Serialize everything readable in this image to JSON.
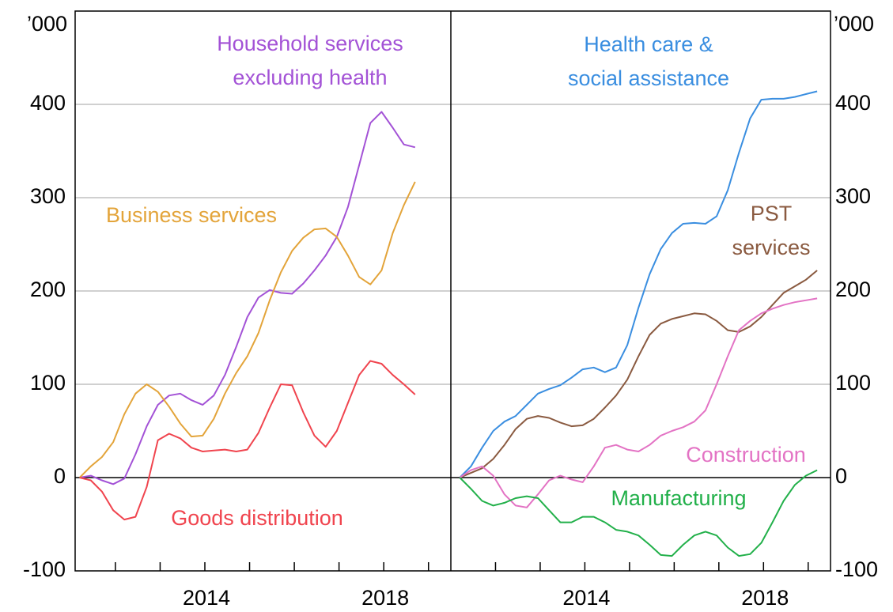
{
  "chart_data": [
    {
      "type": "line",
      "y_unit_label": "’000",
      "y_axis_side": "left",
      "xlim": [
        2011.1,
        2019.5
      ],
      "ylim": [
        -100,
        500
      ],
      "yticks": [
        -100,
        0,
        100,
        200,
        300,
        400
      ],
      "xticks": [
        2014,
        2018
      ],
      "xminor_ticks": [
        2012,
        2013,
        2015,
        2016,
        2017,
        2019
      ],
      "grid": true,
      "x": [
        2011.2,
        2011.45,
        2011.7,
        2011.95,
        2012.2,
        2012.45,
        2012.7,
        2012.95,
        2013.2,
        2013.45,
        2013.7,
        2013.95,
        2014.2,
        2014.45,
        2014.7,
        2014.95,
        2015.2,
        2015.45,
        2015.7,
        2015.95,
        2016.2,
        2016.45,
        2016.7,
        2016.95,
        2017.2,
        2017.45,
        2017.7,
        2017.95,
        2018.2,
        2018.45,
        2018.7
      ],
      "series": [
        {
          "name": [
            "Household services",
            "excluding health"
          ],
          "color": "#a352d6",
          "values": [
            0,
            2,
            -3,
            -7,
            -1,
            25,
            55,
            78,
            88,
            90,
            83,
            78,
            88,
            110,
            140,
            172,
            193,
            201,
            198,
            197,
            208,
            222,
            238,
            258,
            290,
            335,
            380,
            392,
            375,
            357,
            354
          ]
        },
        {
          "name": [
            "Business services"
          ],
          "color": "#e3a43a",
          "values": [
            0,
            12,
            22,
            38,
            68,
            90,
            100,
            92,
            76,
            58,
            44,
            45,
            63,
            90,
            112,
            130,
            155,
            190,
            220,
            243,
            257,
            266,
            267,
            258,
            238,
            215,
            207,
            222,
            262,
            292,
            317
          ]
        },
        {
          "name": [
            "Goods distribution"
          ],
          "color": "#f0444e",
          "values": [
            0,
            -3,
            -15,
            -35,
            -45,
            -42,
            -10,
            40,
            47,
            42,
            32,
            28,
            29,
            30,
            28,
            30,
            48,
            75,
            100,
            99,
            70,
            45,
            33,
            50,
            80,
            110,
            125,
            122,
            110,
            100,
            89
          ]
        }
      ]
    },
    {
      "type": "line",
      "y_unit_label": "’000",
      "y_axis_side": "right",
      "xlim": [
        2011.0,
        2019.5
      ],
      "ylim": [
        -100,
        500
      ],
      "yticks": [
        -100,
        0,
        100,
        200,
        300,
        400
      ],
      "xticks": [
        2014,
        2018
      ],
      "xminor_ticks": [
        2012,
        2013,
        2015,
        2016,
        2017,
        2019
      ],
      "grid": true,
      "x": [
        2011.2,
        2011.45,
        2011.7,
        2011.95,
        2012.2,
        2012.45,
        2012.7,
        2012.95,
        2013.2,
        2013.45,
        2013.7,
        2013.95,
        2014.2,
        2014.45,
        2014.7,
        2014.95,
        2015.2,
        2015.45,
        2015.7,
        2015.95,
        2016.2,
        2016.45,
        2016.7,
        2016.95,
        2017.2,
        2017.45,
        2017.7,
        2017.95,
        2018.2,
        2018.45,
        2018.7,
        2018.95,
        2019.2
      ],
      "series": [
        {
          "name": [
            "Health care &",
            "social assistance"
          ],
          "color": "#3a8ee0",
          "values": [
            0,
            12,
            32,
            50,
            60,
            66,
            78,
            90,
            95,
            99,
            107,
            116,
            118,
            113,
            118,
            142,
            182,
            218,
            245,
            262,
            272,
            273,
            272,
            280,
            308,
            348,
            385,
            405,
            406,
            406,
            408,
            411,
            414
          ]
        },
        {
          "name": [
            "PST",
            "services"
          ],
          "color": "#8a5a40",
          "values": [
            0,
            5,
            10,
            20,
            35,
            52,
            63,
            66,
            64,
            59,
            55,
            56,
            63,
            75,
            88,
            105,
            130,
            153,
            165,
            170,
            173,
            176,
            175,
            168,
            158,
            156,
            162,
            172,
            185,
            198,
            205,
            212,
            222
          ]
        },
        {
          "name": [
            "Construction"
          ],
          "color": "#e373c4",
          "values": [
            0,
            8,
            12,
            2,
            -18,
            -30,
            -32,
            -18,
            -3,
            2,
            -2,
            -5,
            12,
            32,
            35,
            30,
            28,
            35,
            45,
            50,
            54,
            60,
            72,
            100,
            130,
            158,
            168,
            176,
            181,
            185,
            188,
            190,
            192
          ]
        },
        {
          "name": [
            "Manufacturing"
          ],
          "color": "#22b04a",
          "values": [
            0,
            -12,
            -25,
            -30,
            -27,
            -22,
            -20,
            -22,
            -35,
            -48,
            -48,
            -42,
            -42,
            -48,
            -56,
            -58,
            -62,
            -72,
            -83,
            -84,
            -72,
            -62,
            -58,
            -62,
            -75,
            -84,
            -82,
            -70,
            -48,
            -25,
            -8,
            2,
            8
          ]
        }
      ]
    }
  ]
}
